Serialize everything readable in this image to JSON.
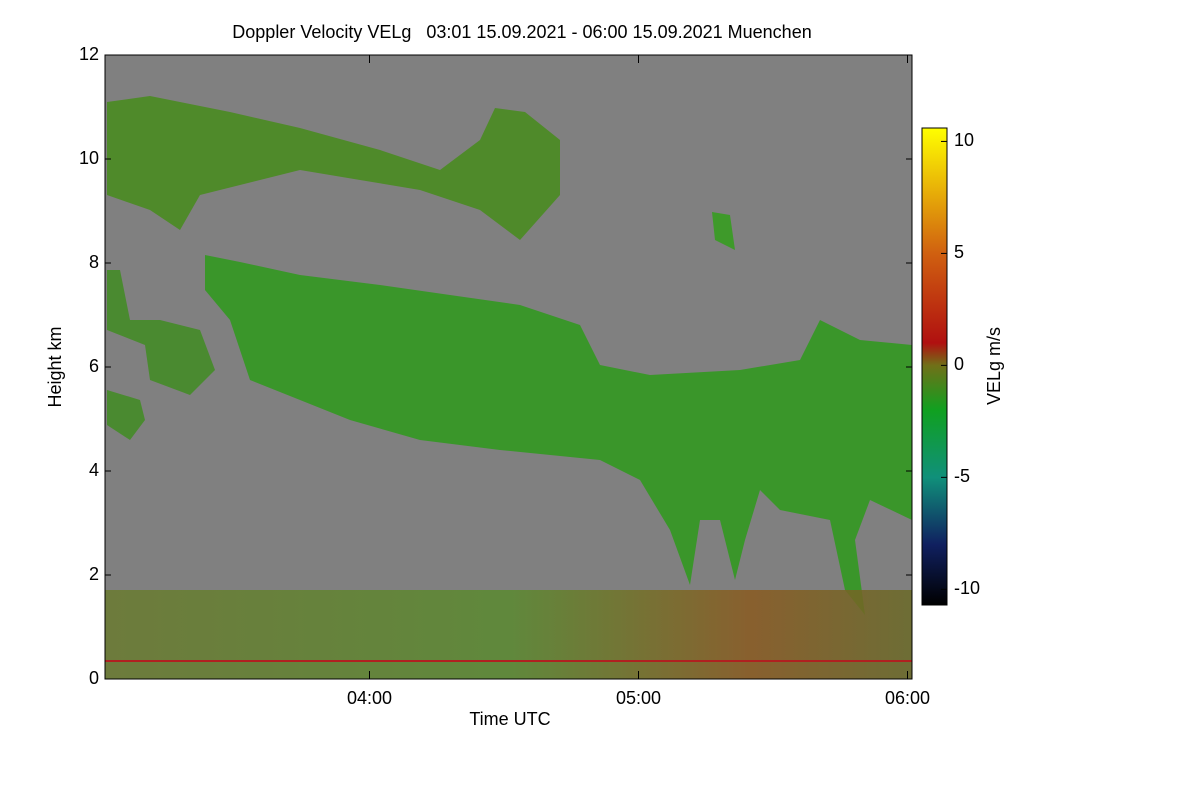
{
  "chart_data": {
    "type": "heatmap",
    "title": "Doppler Velocity VELg   03:01 15.09.2021 - 06:00 15.09.2021 Muenchen",
    "xlabel": "Time UTC",
    "ylabel": "Height km",
    "xlim": [
      3.0167,
      6.0167
    ],
    "xticks": [
      {
        "value": 4,
        "label": "04:00"
      },
      {
        "value": 5,
        "label": "05:00"
      },
      {
        "value": 6,
        "label": "06:00"
      }
    ],
    "ylim": [
      0,
      12
    ],
    "yticks": [
      0,
      2,
      4,
      6,
      8,
      10,
      12
    ],
    "background": "#808080",
    "colorbar": {
      "label": "VELg m/s",
      "zlim": [
        -10.7,
        10.6
      ],
      "zticks": [
        -10,
        -5,
        0,
        5,
        10
      ],
      "colorscale": [
        {
          "value": -10.7,
          "color": "#000000"
        },
        {
          "value": -8,
          "color": "#102060"
        },
        {
          "value": -5,
          "color": "#10907a"
        },
        {
          "value": -2,
          "color": "#10a020"
        },
        {
          "value": 0,
          "color": "#707018"
        },
        {
          "value": 1,
          "color": "#b01010"
        },
        {
          "value": 5,
          "color": "#d06010"
        },
        {
          "value": 10.6,
          "color": "#ffff00"
        }
      ]
    }
  }
}
